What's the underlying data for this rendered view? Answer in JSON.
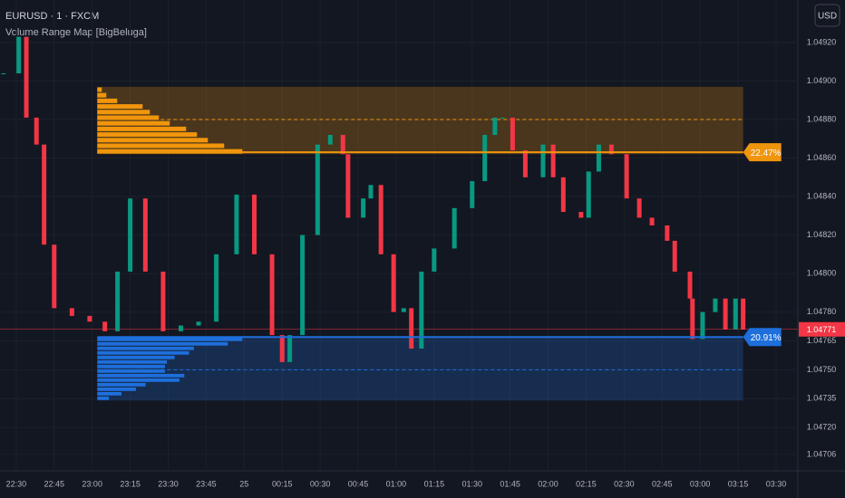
{
  "chart_data": {
    "type": "candlestick",
    "title": "EURUSD · 1 · FXCM",
    "subtitle": "Volume Range Map [BigBeluga]",
    "currency": "USD",
    "up_color": "#089981",
    "down_color": "#f23645",
    "x": [
      -5,
      1,
      4,
      8,
      11,
      15,
      22,
      29,
      35,
      40,
      45,
      51,
      58,
      65,
      72,
      79,
      87,
      94,
      101,
      105,
      108,
      113,
      119,
      124,
      129,
      131,
      137,
      140,
      144,
      149,
      153,
      156,
      160,
      165,
      173,
      180,
      185,
      189,
      192,
      196,
      201,
      208,
      212,
      216,
      223,
      226,
      230,
      235,
      241,
      246,
      251,
      257,
      260,
      266,
      267,
      271,
      276,
      280,
      284,
      287
    ],
    "values": [
      1.04904,
      1.04923,
      1.04881,
      1.04867,
      1.04815,
      1.04782,
      1.04778,
      1.04775,
      1.0477,
      1.04801,
      1.04839,
      1.04801,
      1.0477,
      1.04773,
      1.04775,
      1.0481,
      1.04841,
      1.0481,
      1.04768,
      1.04754,
      1.04768,
      1.0482,
      1.04867,
      1.04872,
      1.04862,
      1.04829,
      1.04839,
      1.04846,
      1.0481,
      1.0478,
      1.04782,
      1.04761,
      1.04801,
      1.04813,
      1.04834,
      1.04848,
      1.04872,
      1.04881,
      1.04881,
      1.04864,
      1.0485,
      1.04867,
      1.0485,
      1.04832,
      1.04829,
      1.04853,
      1.04867,
      1.04862,
      1.04839,
      1.04829,
      1.04825,
      1.04817,
      1.04801,
      1.04787,
      1.04766,
      1.0478,
      1.04787,
      1.04771,
      1.04787,
      1.04771
    ],
    "xlim": [
      -6.4,
      308.6
    ],
    "ylim": [
      1.046975,
      1.049421
    ],
    "xticks": [
      {
        "value": 0,
        "label": "22:30"
      },
      {
        "value": 15,
        "label": "22:45"
      },
      {
        "value": 30,
        "label": "23:00"
      },
      {
        "value": 45,
        "label": "23:15"
      },
      {
        "value": 60,
        "label": "23:30"
      },
      {
        "value": 75,
        "label": "23:45"
      },
      {
        "value": 90,
        "label": "25"
      },
      {
        "value": 105,
        "label": "00:15"
      },
      {
        "value": 120,
        "label": "00:30"
      },
      {
        "value": 135,
        "label": "00:45"
      },
      {
        "value": 150,
        "label": "01:00"
      },
      {
        "value": 165,
        "label": "01:15"
      },
      {
        "value": 180,
        "label": "01:30"
      },
      {
        "value": 195,
        "label": "01:45"
      },
      {
        "value": 210,
        "label": "02:00"
      },
      {
        "value": 225,
        "label": "02:15"
      },
      {
        "value": 240,
        "label": "02:30"
      },
      {
        "value": 255,
        "label": "02:45"
      },
      {
        "value": 270,
        "label": "03:00"
      },
      {
        "value": 285,
        "label": "03:15"
      },
      {
        "value": 300,
        "label": "03:30"
      }
    ],
    "yticks": [
      {
        "value": 1.0492,
        "label": "1.04920"
      },
      {
        "value": 1.049,
        "label": "1.04900"
      },
      {
        "value": 1.0488,
        "label": "1.04880"
      },
      {
        "value": 1.0486,
        "label": "1.04860"
      },
      {
        "value": 1.0484,
        "label": "1.04840"
      },
      {
        "value": 1.0482,
        "label": "1.04820"
      },
      {
        "value": 1.048,
        "label": "1.04800"
      },
      {
        "value": 1.0478,
        "label": "1.04780"
      },
      {
        "value": 1.04765,
        "label": "1.04765"
      },
      {
        "value": 1.0475,
        "label": "1.04750"
      },
      {
        "value": 1.04735,
        "label": "1.04735"
      },
      {
        "value": 1.0472,
        "label": "1.04720"
      },
      {
        "value": 1.04706,
        "label": "1.04706"
      }
    ],
    "last_price": {
      "value": 1.04771,
      "label": "1.04771"
    },
    "zones": [
      {
        "color": "#f0950c",
        "start": 32,
        "end": 287,
        "top": 1.04897,
        "bottom": 1.04862,
        "mid": 1.0488,
        "level": 1.04863,
        "label": "22.47%",
        "profile": [
          5,
          10,
          22,
          50,
          58,
          68,
          80,
          98,
          110,
          122,
          140,
          160
        ]
      },
      {
        "color": "#1e6fdc",
        "start": 32,
        "end": 287,
        "top": 1.04767,
        "bottom": 1.04734,
        "mid": 1.0475,
        "level": 1.04767,
        "label": "20.91%",
        "profile": [
          150,
          135,
          100,
          95,
          80,
          72,
          70,
          70,
          90,
          85,
          50,
          40,
          25,
          12
        ]
      }
    ]
  }
}
